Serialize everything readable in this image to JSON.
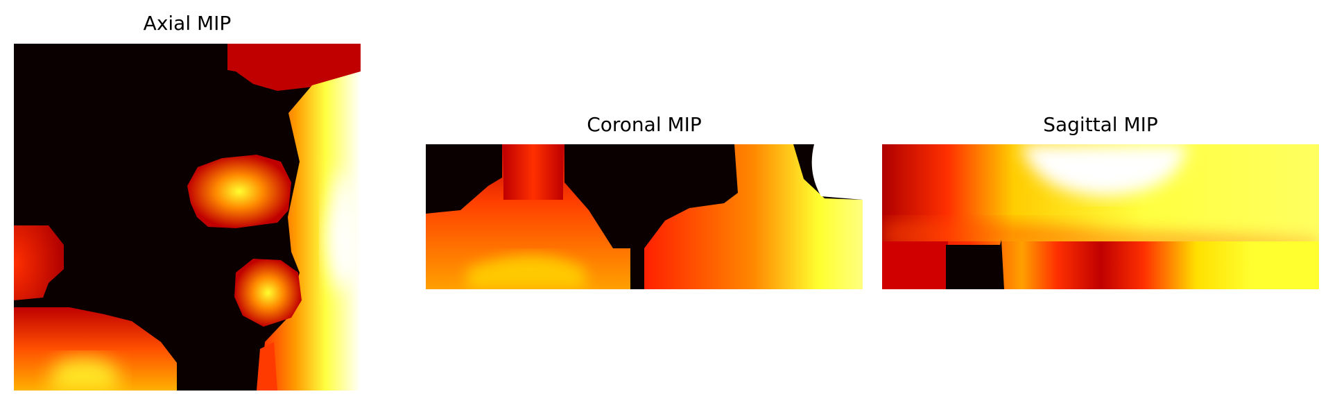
{
  "colormap": {
    "name": "hot",
    "stops": [
      "#0a0000",
      "#b80000",
      "#ff2a00",
      "#ff9a00",
      "#ffff20",
      "#ffffff"
    ]
  },
  "panels": [
    {
      "id": "axial",
      "title": "Axial MIP"
    },
    {
      "id": "coronal",
      "title": "Coronal MIP"
    },
    {
      "id": "sagittal",
      "title": "Sagittal MIP"
    }
  ]
}
